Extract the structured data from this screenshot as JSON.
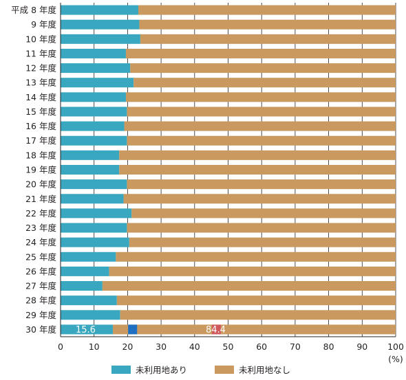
{
  "chart_data": {
    "type": "bar",
    "orientation": "horizontal",
    "stacked": true,
    "normalized": true,
    "categories": [
      "平成 8 年度",
      "9 年度",
      "10 年度",
      "11 年度",
      "12 年度",
      "13 年度",
      "14 年度",
      "15 年度",
      "16 年度",
      "17 年度",
      "18 年度",
      "19 年度",
      "20 年度",
      "21 年度",
      "22 年度",
      "23 年度",
      "24 年度",
      "25 年度",
      "26 年度",
      "27 年度",
      "28 年度",
      "29 年度",
      "30 年度"
    ],
    "series": [
      {
        "name": "未利用地あり",
        "color": "#3aa7c0",
        "values": [
          23.2,
          23.5,
          23.8,
          19.5,
          20.8,
          21.8,
          19.5,
          19.8,
          19.0,
          19.8,
          17.5,
          17.5,
          19.8,
          18.8,
          21.2,
          19.8,
          20.5,
          16.5,
          14.5,
          12.5,
          16.8,
          17.8,
          15.6
        ]
      },
      {
        "name": "未利用地なし",
        "color": "#c9995f",
        "values": [
          76.8,
          76.5,
          76.2,
          80.5,
          79.2,
          78.2,
          80.5,
          80.2,
          81.0,
          80.2,
          82.5,
          82.5,
          80.2,
          81.2,
          78.8,
          80.2,
          79.5,
          83.5,
          85.5,
          87.5,
          83.2,
          82.2,
          84.4
        ]
      }
    ],
    "data_labels": [
      {
        "category": "30 年度",
        "series": 0,
        "text": "15.6"
      },
      {
        "category": "30 年度",
        "series": 1,
        "text": "84.4"
      }
    ],
    "xlim": [
      0,
      100
    ],
    "xticks": [
      "0",
      "10",
      "20",
      "30",
      "40",
      "50",
      "60",
      "70",
      "80",
      "90",
      "100"
    ],
    "x_unit": "(%)",
    "grid": "vertical",
    "legend_position": "bottom",
    "markers": [
      {
        "category": "30 年度",
        "x": 21.5,
        "color": "#1e6fc2"
      },
      {
        "category": "30 年度",
        "x": 46.5,
        "color": "#cf5a5e"
      }
    ]
  }
}
